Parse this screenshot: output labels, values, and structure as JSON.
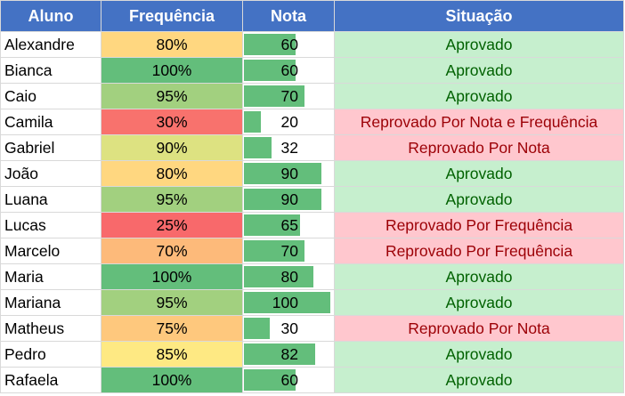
{
  "headers": {
    "aluno": "Aluno",
    "frequencia": "Frequência",
    "nota": "Nota",
    "situacao": "Situação"
  },
  "colors": {
    "header_bg": "#4472c4",
    "bar": "#63be7b",
    "approved_bg": "#c6efce",
    "approved_text": "#006100",
    "failed_bg": "#ffc7ce",
    "failed_text": "#9c0006"
  },
  "rows": [
    {
      "aluno": "Alexandre",
      "frequencia": "80%",
      "freq_color": "#ffd780",
      "nota": "60",
      "nota_value": 60,
      "situacao": "Aprovado",
      "status": "ok"
    },
    {
      "aluno": "Bianca",
      "frequencia": "100%",
      "freq_color": "#63be7b",
      "nota": "60",
      "nota_value": 60,
      "situacao": "Aprovado",
      "status": "ok"
    },
    {
      "aluno": "Caio",
      "frequencia": "95%",
      "freq_color": "#a2d07f",
      "nota": "70",
      "nota_value": 70,
      "situacao": "Aprovado",
      "status": "ok"
    },
    {
      "aluno": "Camila",
      "frequencia": "30%",
      "freq_color": "#f8726d",
      "nota": "20",
      "nota_value": 20,
      "situacao": "Reprovado Por Nota e Frequência",
      "status": "bad"
    },
    {
      "aluno": "Gabriel",
      "frequencia": "90%",
      "freq_color": "#dde281",
      "nota": "32",
      "nota_value": 32,
      "situacao": "Reprovado Por Nota",
      "status": "bad"
    },
    {
      "aluno": "João",
      "frequencia": "80%",
      "freq_color": "#ffd780",
      "nota": "90",
      "nota_value": 90,
      "situacao": "Aprovado",
      "status": "ok"
    },
    {
      "aluno": "Luana",
      "frequencia": "95%",
      "freq_color": "#a2d07f",
      "nota": "90",
      "nota_value": 90,
      "situacao": "Aprovado",
      "status": "ok"
    },
    {
      "aluno": "Lucas",
      "frequencia": "25%",
      "freq_color": "#f8696b",
      "nota": "65",
      "nota_value": 65,
      "situacao": "Reprovado Por Frequência",
      "status": "bad"
    },
    {
      "aluno": "Marcelo",
      "frequencia": "70%",
      "freq_color": "#fdba7a",
      "nota": "70",
      "nota_value": 70,
      "situacao": "Reprovado Por Frequência",
      "status": "bad"
    },
    {
      "aluno": "Maria",
      "frequencia": "100%",
      "freq_color": "#63be7b",
      "nota": "80",
      "nota_value": 80,
      "situacao": "Aprovado",
      "status": "ok"
    },
    {
      "aluno": "Mariana",
      "frequencia": "95%",
      "freq_color": "#a2d07f",
      "nota": "100",
      "nota_value": 100,
      "situacao": "Aprovado",
      "status": "ok"
    },
    {
      "aluno": "Matheus",
      "frequencia": "75%",
      "freq_color": "#fec87d",
      "nota": "30",
      "nota_value": 30,
      "situacao": "Reprovado Por Nota",
      "status": "bad"
    },
    {
      "aluno": "Pedro",
      "frequencia": "85%",
      "freq_color": "#fee983",
      "nota": "82",
      "nota_value": 82,
      "situacao": "Aprovado",
      "status": "ok"
    },
    {
      "aluno": "Rafaela",
      "frequencia": "100%",
      "freq_color": "#63be7b",
      "nota": "60",
      "nota_value": 60,
      "situacao": "Aprovado",
      "status": "ok"
    }
  ]
}
